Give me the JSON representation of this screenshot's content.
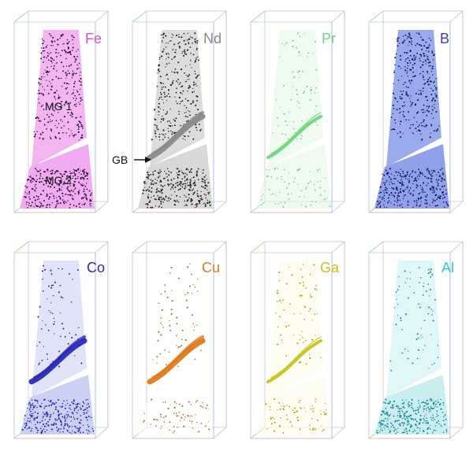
{
  "panels": [
    {
      "element": "Fe",
      "color": "#d24fd6",
      "fill": "#f0a8f0",
      "dot": "#2a1040",
      "gb": "none",
      "upper": "dense",
      "lower": "dense"
    },
    {
      "element": "Nd",
      "color": "#8a8a8a",
      "fill": "#d6d6d6",
      "dot": "#222222",
      "gb": "strong",
      "upper": "dense",
      "lower": "dense"
    },
    {
      "element": "Pr",
      "color": "#6fd67a",
      "fill": "#e2f6e3",
      "dot": "#7ad088",
      "gb": "medium",
      "upper": "sparse",
      "lower": "sparse"
    },
    {
      "element": "B",
      "color": "#3b3bc4",
      "fill": "#8a9be8",
      "dot": "#141a60",
      "gb": "none",
      "upper": "dense",
      "lower": "dense"
    },
    {
      "element": "Co",
      "color": "#2b2bb8",
      "fill": "#c9cdf2",
      "dot": "#2b2bb8",
      "gb": "strong",
      "upper": "sparse",
      "lower": "dense"
    },
    {
      "element": "Cu",
      "color": "#e07b1c",
      "fill": "#ffffff",
      "dot": "#b86a2a",
      "gb": "strong",
      "upper": "sparse",
      "lower": "sparse"
    },
    {
      "element": "Ga",
      "color": "#c9c21c",
      "fill": "#fbfbe8",
      "dot": "#a8a21c",
      "gb": "medium",
      "upper": "sparse",
      "lower": "sparse"
    },
    {
      "element": "Al",
      "color": "#33c9cf",
      "fill": "#c8eef0",
      "dot": "#1a8a90",
      "gb": "none",
      "upper": "sparse",
      "lower": "dense"
    }
  ],
  "annotations": {
    "mg1": "MG 1",
    "mg2": "MG 2",
    "gb": "GB"
  }
}
